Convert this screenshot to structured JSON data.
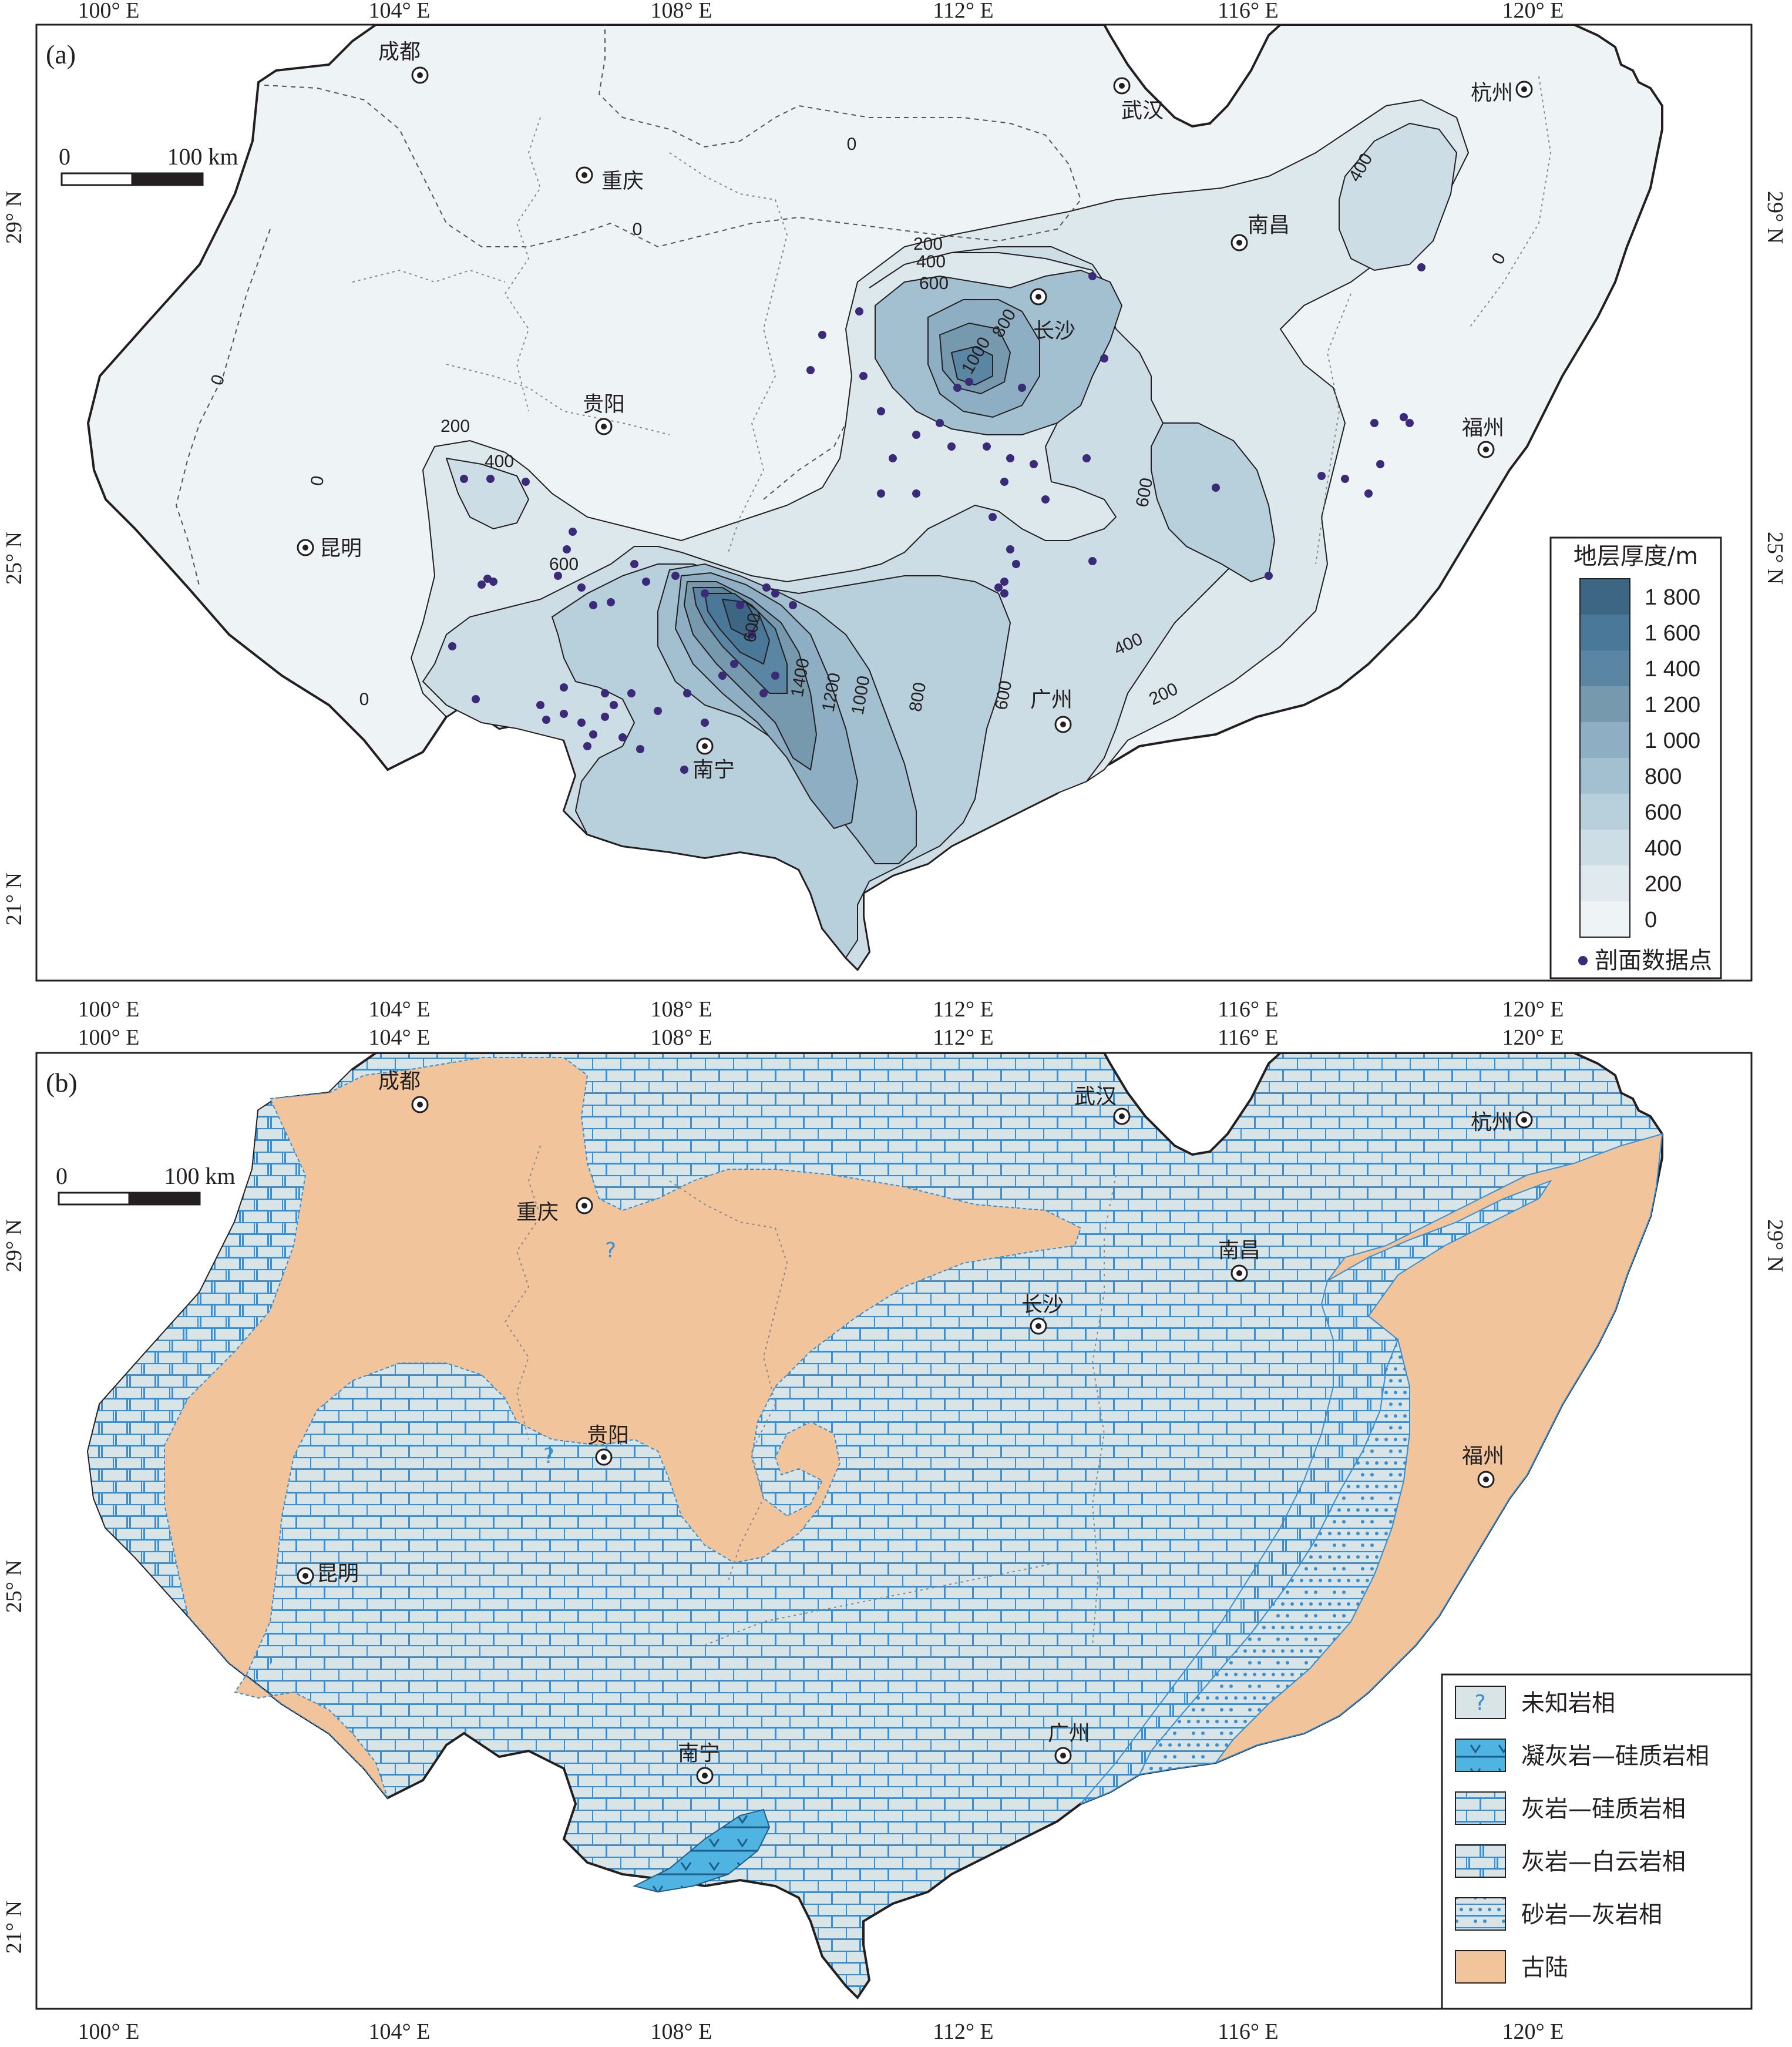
{
  "panel_a": {
    "label": "(a)",
    "top_ticks": [
      "100° E",
      "104° E",
      "108° E",
      "112° E",
      "116° E",
      "120° E"
    ],
    "bottom_ticks": [
      "100° E",
      "104° E",
      "108° E",
      "112° E",
      "116° E",
      "120° E"
    ],
    "left_ticks": [
      "29° N",
      "25° N",
      "21° N"
    ],
    "right_ticks": [
      "29° N",
      "25° N"
    ],
    "scale": {
      "start": "0",
      "end": "100 km"
    },
    "cities": [
      "成都",
      "武汉",
      "杭州",
      "重庆",
      "南昌",
      "长沙",
      "贵阳",
      "福州",
      "昆明",
      "广州",
      "南宁"
    ],
    "contour_labels": [
      "0",
      "0",
      "0",
      "0",
      "0",
      "0",
      "200",
      "400",
      "600",
      "800",
      "1000",
      "200",
      "400",
      "600",
      "1400",
      "1200",
      "1000",
      "800",
      "600",
      "400",
      "200",
      "400",
      "600",
      "600"
    ],
    "legend": {
      "title": "地层厚度/m",
      "classes": [
        "1 800",
        "1 600",
        "1 400",
        "1 200",
        "1 000",
        "800",
        "600",
        "400",
        "200",
        "0"
      ],
      "colors": [
        "#3d6684",
        "#4a7898",
        "#5a86a3",
        "#7699ad",
        "#8eafc3",
        "#a3c0d1",
        "#b8cfdc",
        "#cddde6",
        "#dfe9ee",
        "#eef4f6"
      ],
      "point_label": "剖面数据点",
      "point_color": "#3b2a78"
    }
  },
  "panel_b": {
    "label": "(b)",
    "top_ticks": [
      "100° E",
      "104° E",
      "108° E",
      "112° E",
      "116° E",
      "120° E"
    ],
    "bottom_ticks": [
      "100° E",
      "104° E",
      "108° E",
      "112° E",
      "116° E",
      "120° E"
    ],
    "left_ticks": [
      "29° N",
      "25° N",
      "21° N"
    ],
    "right_ticks": [
      "29° N"
    ],
    "scale": {
      "start": "0",
      "end": "100 km"
    },
    "cities": [
      "成都",
      "武汉",
      "杭州",
      "重庆",
      "南昌",
      "长沙",
      "贵阳",
      "福州",
      "昆明",
      "广州",
      "南宁"
    ],
    "unknown_marks": [
      "?",
      "?"
    ],
    "legend": {
      "items": [
        {
          "symbol": "?",
          "label": "未知岩相",
          "color": "#d7e3e6"
        },
        {
          "symbol": "",
          "label": "凝灰岩—硅质岩相",
          "color": "#4fb4e2"
        },
        {
          "symbol": "",
          "label": "灰岩—硅质岩相",
          "color": "#d7e3e6"
        },
        {
          "symbol": "",
          "label": "灰岩—白云岩相",
          "color": "#d7e3e6"
        },
        {
          "symbol": "",
          "label": "砂岩—灰岩相",
          "color": "#d7e3e6"
        },
        {
          "symbol": "",
          "label": "古陆",
          "color": "#f1c49b"
        }
      ]
    }
  }
}
